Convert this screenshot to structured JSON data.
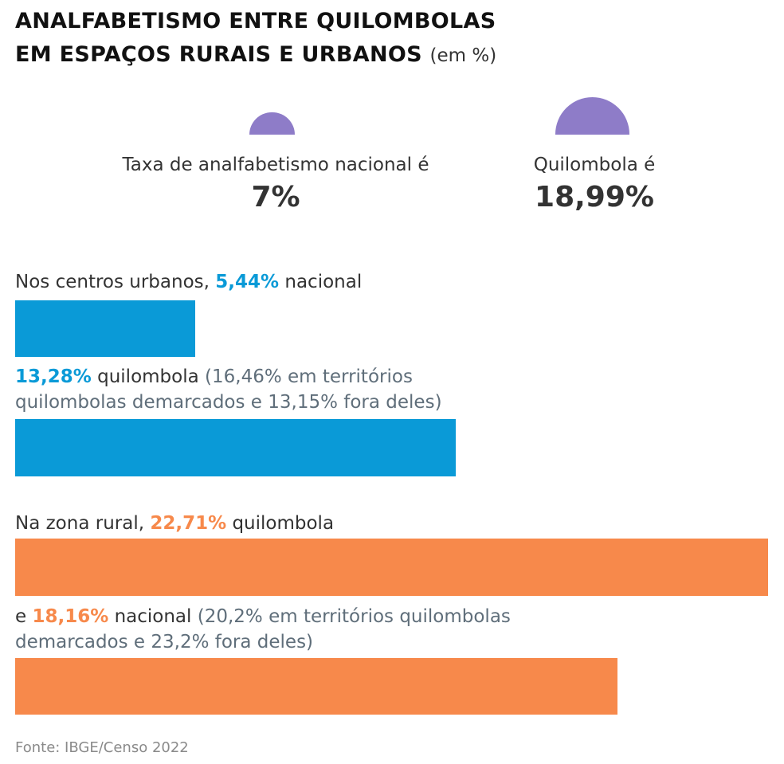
{
  "header": {
    "title_line1": "ANALFABETISMO ENTRE QUILOMBOLAS",
    "title_line2": "EM ESPAÇOS RURAIS E URBANOS",
    "unit": "(em %)"
  },
  "summary": {
    "national": {
      "label": "Taxa de analfabetismo nacional é",
      "value": "7%",
      "rate": 7
    },
    "quilombola": {
      "label": "Quilombola é",
      "value": "18,99%",
      "rate": 18.99
    },
    "icon_color": "#8e7cc8"
  },
  "urban": {
    "national_prefix": "Nos centros urbanos,",
    "national_value": "5,44%",
    "national_suffix": "nacional",
    "quilombola_value": "13,28%",
    "quilombola_suffix": "quilombola",
    "quilombola_note_1": "(16,46% em territórios",
    "quilombola_note_2": "quilombolas demarcados e 13,15% fora deles)"
  },
  "rural": {
    "quilombola_prefix": "Na zona rural,",
    "quilombola_value": "22,71%",
    "quilombola_suffix": "quilombola",
    "national_prefix": "e",
    "national_value": "18,16%",
    "national_suffix": "nacional",
    "national_note_1": "(20,2% em territórios quilombolas",
    "national_note_2": "demarcados e 23,2% fora deles)"
  },
  "source": "Fonte: IBGE/Censo 2022",
  "chart_data": {
    "type": "bar",
    "orientation": "horizontal",
    "bars": [
      {
        "category": "Urbano",
        "group": "nacional",
        "value": 5.44,
        "color": "#0a9ad7"
      },
      {
        "category": "Urbano",
        "group": "quilombola",
        "value": 13.28,
        "color": "#0a9ad7"
      },
      {
        "category": "Rural",
        "group": "quilombola",
        "value": 22.71,
        "color": "#f7894b"
      },
      {
        "category": "Rural",
        "group": "nacional",
        "value": 18.16,
        "color": "#f7894b"
      }
    ],
    "xlim": [
      0,
      22.71
    ],
    "grid": false,
    "legend": "none"
  }
}
